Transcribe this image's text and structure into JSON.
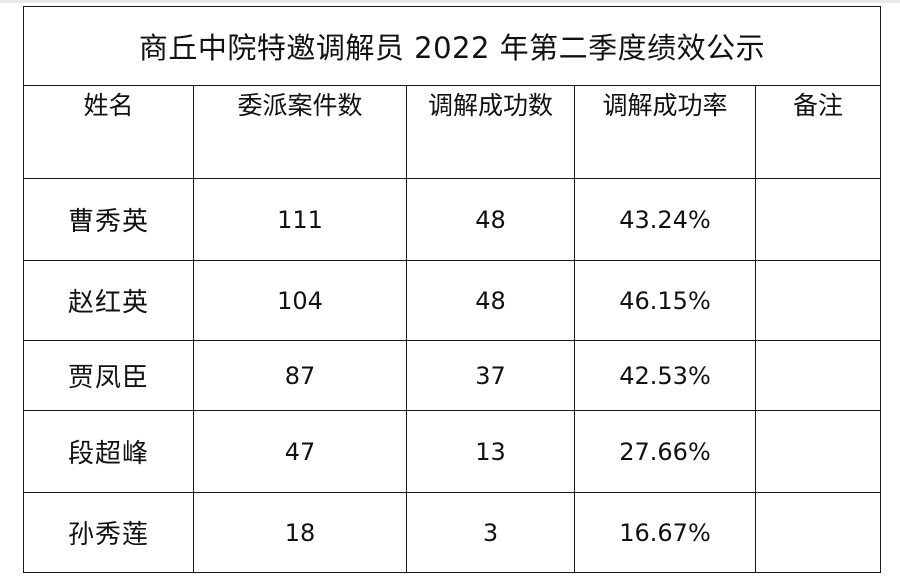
{
  "title": "商丘中院特邀调解员 2022 年第二季度绩效公示",
  "headers": [
    "姓名",
    "委派案件数",
    "调解成功数",
    "调解成功率",
    "备注"
  ],
  "rows": [
    {
      "name": "曹秀英",
      "assigned": "111",
      "success": "48",
      "rate": "43.24%",
      "note": ""
    },
    {
      "name": "赵红英",
      "assigned": "104",
      "success": "48",
      "rate": "46.15%",
      "note": ""
    },
    {
      "name": "贾凤臣",
      "assigned": "87",
      "success": "37",
      "rate": "42.53%",
      "note": ""
    },
    {
      "name": "段超峰",
      "assigned": "47",
      "success": "13",
      "rate": "27.66%",
      "note": ""
    },
    {
      "name": "孙秀莲",
      "assigned": "18",
      "success": "3",
      "rate": "16.67%",
      "note": ""
    }
  ]
}
